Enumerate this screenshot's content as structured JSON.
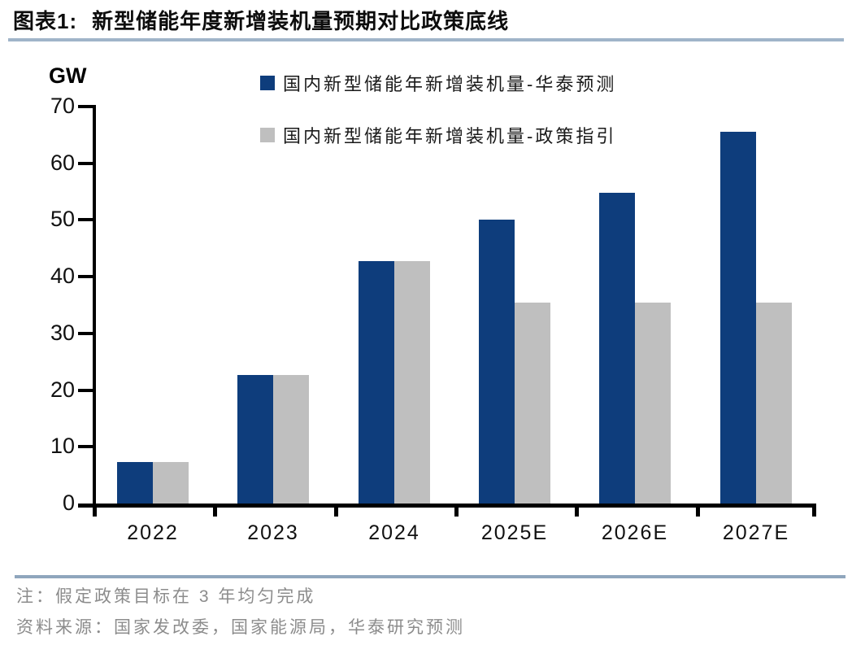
{
  "header": {
    "prefix": "图表1:",
    "title": "新型储能年度新增装机量预期对比政策底线"
  },
  "chart_data": {
    "type": "bar",
    "title": "新型储能年度新增装机量预期对比政策底线",
    "unit_label": "GW",
    "categories": [
      "2022",
      "2023",
      "2024",
      "2025E",
      "2026E",
      "2027E"
    ],
    "series": [
      {
        "key": "huatai-forecast",
        "name": "国内新型储能年新增装机量-华泰预测",
        "color": "#0e3d7c",
        "values": [
          7.3,
          22.6,
          42.7,
          50.0,
          54.8,
          65.5
        ]
      },
      {
        "key": "policy-guideline",
        "name": "国内新型储能年新增装机量-政策指引",
        "color": "#bfbfbf",
        "values": [
          7.3,
          22.6,
          42.7,
          35.4,
          35.4,
          35.4
        ]
      }
    ],
    "ylabel": "GW",
    "xlabel": "",
    "ylim": [
      0,
      70
    ],
    "ytick_step": 10,
    "ytick_labels": [
      "0",
      "10",
      "20",
      "30",
      "40",
      "50",
      "60",
      "70"
    ],
    "grid": false,
    "legend_position": "top-center"
  },
  "footer": {
    "note": "注：假定政策目标在 3 年均匀完成",
    "source": "资料来源：国家发改委，国家能源局，华泰研究预测"
  },
  "colors": {
    "bar_forecast": "#0e3d7c",
    "bar_policy": "#bfbfbf",
    "title_rule": "#a0b4c9",
    "footer_rule": "#8fa6bd",
    "axis": "#000000",
    "note_text": "#8c8c8c"
  }
}
